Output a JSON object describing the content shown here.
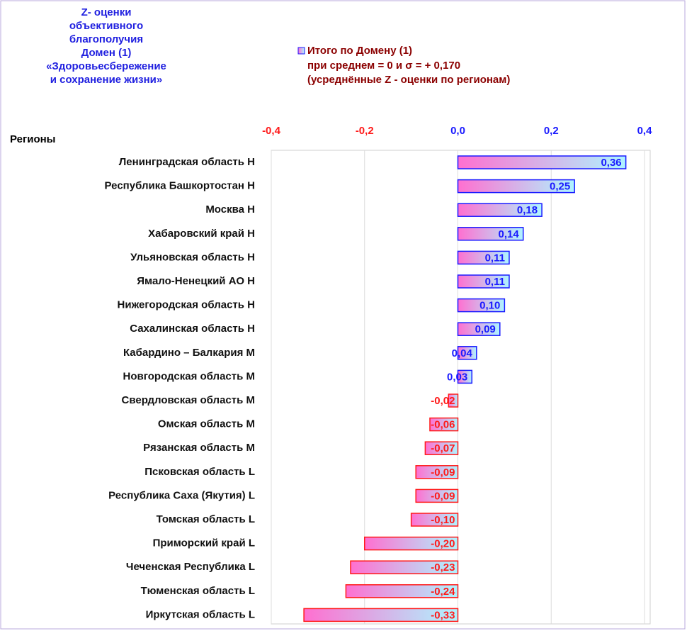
{
  "chart_data": {
    "type": "bar",
    "orientation": "horizontal",
    "title": [
      "Z- оценки",
      "объективного",
      "благополучия",
      "Домен (1)",
      "«Здоровьесбережение",
      "и сохранение жизни»"
    ],
    "subtitle": [
      "при среднем = 0 и σ =  + 0,170",
      "(усреднённые Z - оценки по регионам)"
    ],
    "ylabel": "Регионы",
    "categories": [
      "Ленинградская область H",
      "Республика Башкортостан H",
      "Москва H",
      "Хабаровский край H",
      "Ульяновская область H",
      "Ямало-Ненецкий АО H",
      "Нижегородская область H",
      "Сахалинская область H",
      "Кабардино – Балкария M",
      "Новгородская область M",
      "Свердловская область M",
      "Омская область M",
      "Рязанская область M",
      "Псковская область L",
      "Республика Саха (Якутия) L",
      "Томская область L",
      "Приморский край L",
      "Чеченская Республика L",
      "Тюменская область L",
      "Иркутская область L"
    ],
    "series": [
      {
        "name": "Итого по Домену (1)",
        "gradient": [
          "#ff6fd0",
          "#aef4ff"
        ],
        "positive_color": "#1a1aff",
        "negative_color": "#ff1a1a",
        "values": [
          0.36,
          0.25,
          0.18,
          0.14,
          0.11,
          0.11,
          0.1,
          0.09,
          0.04,
          0.03,
          -0.02,
          -0.06,
          -0.07,
          -0.09,
          -0.09,
          -0.1,
          -0.2,
          -0.23,
          -0.24,
          -0.33
        ],
        "value_labels": [
          "0,36",
          "0,25",
          "0,18",
          "0,14",
          "0,11",
          "0,11",
          "0,10",
          "0,09",
          "0,04",
          "0,03",
          "-0,02",
          "-0,06",
          "-0,07",
          "-0,09",
          "-0,09",
          "-0,10",
          "-0,20",
          "-0,23",
          "-0,24",
          "-0,33"
        ]
      }
    ],
    "xlim": [
      -0.4,
      0.4
    ],
    "xticks": [
      {
        "value": -0.4,
        "label": "-0,4"
      },
      {
        "value": -0.2,
        "label": "-0,2"
      },
      {
        "value": 0,
        "label": "0,0"
      },
      {
        "value": 0.2,
        "label": "0,2"
      },
      {
        "value": 0.4,
        "label": "0,4"
      }
    ],
    "grid": true
  }
}
